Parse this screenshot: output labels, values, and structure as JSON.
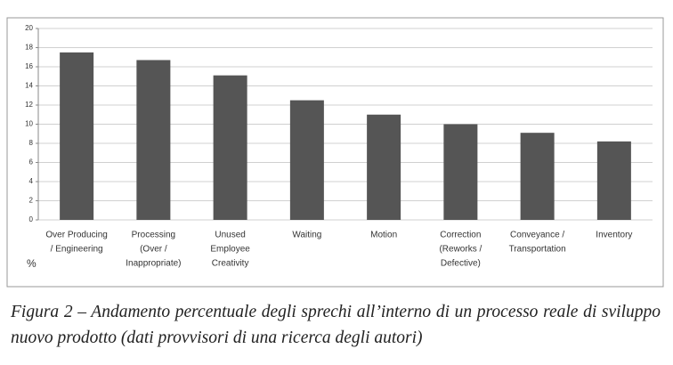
{
  "chart_data": {
    "type": "bar",
    "categories": [
      [
        "Over Producing",
        "/ Engineering"
      ],
      [
        "Processing",
        "(Over /",
        "Inappropriate)"
      ],
      [
        "Unused",
        "Employee",
        "Creativity"
      ],
      [
        "Waiting"
      ],
      [
        "Motion"
      ],
      [
        "Correction",
        "(Reworks /",
        "Defective)"
      ],
      [
        "Conveyance /",
        "Transportation"
      ],
      [
        "Inventory"
      ]
    ],
    "values": [
      17.5,
      16.7,
      15.1,
      12.5,
      11,
      10,
      9.1,
      8.2
    ],
    "color": "#555555",
    "ylim": [
      0,
      20
    ],
    "yticks": [
      0,
      2,
      4,
      6,
      8,
      10,
      12,
      14,
      16,
      18,
      20
    ],
    "grid": true,
    "y_label": "%",
    "caption": "Figura 2 – Andamento percentuale degli sprechi all’interno di un processo reale di sviluppo nuovo prodotto (dati provvisori di una ricerca degli autori)"
  }
}
